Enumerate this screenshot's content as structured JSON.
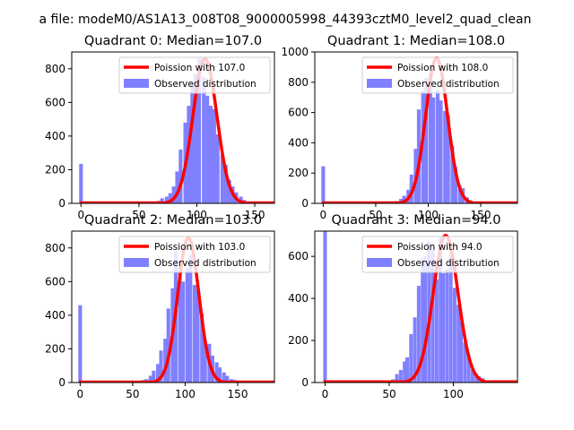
{
  "suptitle": "a file: modeM0/AS1A13_008T08_9000005998_44393cztM0_level2_quad_clean",
  "colors": {
    "poisson_line": "#ff0000",
    "observed_bars": "#8080ff",
    "axes": "#000000"
  },
  "chart_data": [
    {
      "type": "bar",
      "title": "Quadrant 0: Median=107.0",
      "xlim": [
        -8,
        167
      ],
      "ylim": [
        0,
        900
      ],
      "xticks": [
        0,
        50,
        100,
        150
      ],
      "yticks": [
        0,
        200,
        400,
        600,
        800
      ],
      "legend_placement": "top-right",
      "legend": [
        "Poission with 107.0",
        "Observed distribution"
      ],
      "poisson_mean": 107.0,
      "poisson_peak": 860,
      "histogram": {
        "bin_width": 3.2,
        "centers": [
          0,
          3,
          6,
          10,
          13,
          16,
          19,
          22,
          26,
          29,
          32,
          35,
          38,
          42,
          45,
          48,
          51,
          54,
          58,
          61,
          64,
          67,
          70,
          74,
          77,
          80,
          83,
          86,
          90,
          93,
          96,
          99,
          102,
          106,
          109,
          112,
          115,
          118,
          122,
          125,
          128,
          131,
          134,
          138,
          141,
          144,
          147,
          150,
          154,
          157,
          160
        ],
        "counts": [
          235,
          10,
          10,
          10,
          10,
          10,
          10,
          10,
          10,
          10,
          10,
          10,
          10,
          10,
          10,
          10,
          10,
          10,
          10,
          10,
          10,
          15,
          30,
          40,
          60,
          100,
          190,
          320,
          480,
          580,
          720,
          770,
          860,
          750,
          640,
          580,
          560,
          410,
          290,
          230,
          140,
          100,
          65,
          40,
          20,
          10,
          8,
          5,
          3,
          2,
          2
        ]
      }
    },
    {
      "type": "bar",
      "title": "Quadrant 1: Median=108.0",
      "xlim": [
        -8,
        185
      ],
      "ylim": [
        0,
        1000
      ],
      "xticks": [
        0,
        50,
        100,
        150
      ],
      "yticks": [
        0,
        200,
        400,
        600,
        800,
        1000
      ],
      "legend_placement": "top-right",
      "legend": [
        "Poission with 108.0",
        "Observed distribution"
      ],
      "poisson_mean": 108.0,
      "poisson_peak": 960,
      "histogram": {
        "bin_width": 3.5,
        "centers": [
          0,
          4,
          7,
          11,
          14,
          18,
          21,
          25,
          28,
          32,
          35,
          39,
          42,
          46,
          49,
          53,
          56,
          60,
          63,
          67,
          70,
          74,
          77,
          81,
          84,
          88,
          91,
          95,
          98,
          102,
          105,
          109,
          112,
          116,
          119,
          123,
          126,
          130,
          133,
          137,
          140,
          144,
          147,
          151,
          154,
          158,
          161,
          165,
          168,
          172,
          175
        ],
        "counts": [
          245,
          10,
          10,
          10,
          10,
          10,
          10,
          10,
          10,
          10,
          10,
          10,
          10,
          10,
          10,
          10,
          10,
          10,
          10,
          10,
          15,
          30,
          50,
          90,
          190,
          360,
          620,
          740,
          830,
          860,
          700,
          750,
          680,
          610,
          580,
          380,
          240,
          120,
          100,
          40,
          20,
          10,
          8,
          5,
          3,
          2,
          2,
          1,
          1,
          1,
          1
        ]
      }
    },
    {
      "type": "bar",
      "title": "Quadrant 2: Median=103.0",
      "xlim": [
        -8,
        185
      ],
      "ylim": [
        0,
        900
      ],
      "xticks": [
        0,
        50,
        100,
        150
      ],
      "yticks": [
        0,
        200,
        400,
        600,
        800
      ],
      "legend_placement": "top-right",
      "legend": [
        "Poission with 103.0",
        "Observed distribution"
      ],
      "poisson_mean": 103.0,
      "poisson_peak": 860,
      "histogram": {
        "bin_width": 3.5,
        "centers": [
          0,
          4,
          7,
          11,
          14,
          18,
          21,
          25,
          28,
          32,
          35,
          39,
          42,
          46,
          49,
          53,
          56,
          60,
          63,
          67,
          70,
          74,
          77,
          81,
          84,
          88,
          91,
          95,
          98,
          102,
          105,
          109,
          112,
          116,
          119,
          123,
          126,
          130,
          133,
          137,
          140,
          144,
          147,
          151,
          154,
          158,
          161,
          165,
          168,
          172,
          175
        ],
        "counts": [
          460,
          10,
          10,
          10,
          10,
          10,
          10,
          10,
          10,
          10,
          10,
          10,
          10,
          10,
          10,
          10,
          10,
          15,
          20,
          40,
          70,
          110,
          190,
          260,
          440,
          560,
          780,
          690,
          600,
          680,
          760,
          580,
          550,
          410,
          250,
          230,
          160,
          120,
          90,
          60,
          40,
          20,
          15,
          10,
          8,
          5,
          3,
          2,
          2,
          1,
          1
        ]
      }
    },
    {
      "type": "bar",
      "title": "Quadrant 3: Median=94.0",
      "xlim": [
        -8,
        150
      ],
      "ylim": [
        0,
        720
      ],
      "xticks": [
        0,
        50,
        100
      ],
      "yticks": [
        0,
        200,
        400,
        600
      ],
      "legend_placement": "top-right",
      "legend": [
        "Poission with 94.0",
        "Observed distribution"
      ],
      "poisson_mean": 94.0,
      "poisson_peak": 700,
      "histogram": {
        "bin_width": 2.8,
        "centers": [
          0,
          3,
          6,
          8,
          11,
          14,
          17,
          20,
          22,
          25,
          28,
          31,
          34,
          36,
          39,
          42,
          45,
          48,
          50,
          53,
          56,
          59,
          62,
          64,
          67,
          70,
          73,
          76,
          78,
          81,
          84,
          87,
          90,
          92,
          95,
          98,
          101,
          104,
          106,
          109,
          112,
          115,
          118,
          120,
          123,
          126,
          129,
          132,
          134,
          137,
          140
        ],
        "counts": [
          720,
          10,
          10,
          10,
          10,
          10,
          10,
          10,
          10,
          10,
          10,
          10,
          10,
          10,
          10,
          10,
          10,
          10,
          10,
          15,
          40,
          60,
          100,
          120,
          230,
          310,
          460,
          590,
          600,
          670,
          630,
          490,
          690,
          520,
          540,
          610,
          450,
          370,
          290,
          190,
          130,
          60,
          40,
          30,
          20,
          10,
          5,
          3,
          2,
          1,
          1
        ]
      }
    }
  ]
}
